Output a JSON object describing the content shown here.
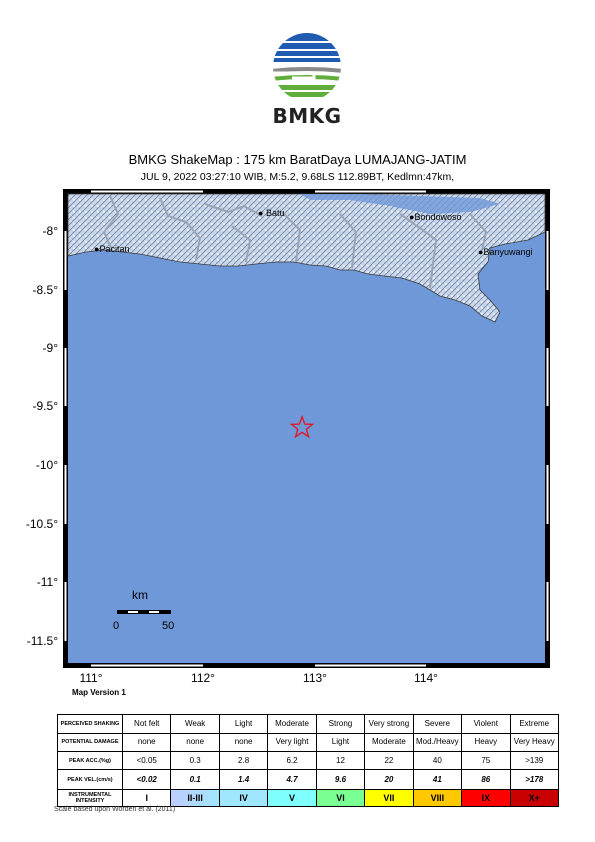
{
  "header": {
    "logo_text": "BMKG",
    "title": "BMKG ShakeMap : 175 km BaratDaya LUMAJANG-JATIM",
    "subtitle": "JUL 9, 2022 03:27:10 WIB, M:5.2, 9.68LS 112.89BT, Kedlmn:47km,"
  },
  "map": {
    "latitude_labels": [
      "-8°",
      "-8.5°",
      "-9°",
      "-9.5°",
      "-10°",
      "-10.5°",
      "-11°",
      "-11.5°"
    ],
    "longitude_labels": [
      "111°",
      "112°",
      "113°",
      "114°"
    ],
    "cities": [
      {
        "name": "Batu",
        "lat": -7.87,
        "lon": 112.52
      },
      {
        "name": "Bondowoso",
        "lat": -7.92,
        "lon": 113.82
      },
      {
        "name": "Pacitan",
        "lat": -8.2,
        "lon": 111.1
      },
      {
        "name": "Banyuwangi",
        "lat": -8.2,
        "lon": 114.37
      }
    ],
    "epicenter": {
      "lat": -9.68,
      "lon": 112.89,
      "icon": "red-star-icon"
    },
    "scale": {
      "unit": "km",
      "min": "0",
      "max": "50"
    },
    "colors": {
      "sea": "#6f98d8",
      "land": "#c8d7ec",
      "epicenter": "#e0192a",
      "boundary": "#9aa4b4"
    }
  },
  "version": "Map Version 1",
  "legend": {
    "rows": [
      {
        "key": "shaking",
        "header": "PERCEIVED SHAKING",
        "cells": [
          "Not felt",
          "Weak",
          "Light",
          "Moderate",
          "Strong",
          "Very strong",
          "Severe",
          "Violent",
          "Extreme"
        ]
      },
      {
        "key": "damage",
        "header": "POTENTIAL DAMAGE",
        "cells": [
          "none",
          "none",
          "none",
          "Very light",
          "Light",
          "Moderate",
          "Mod./Heavy",
          "Heavy",
          "Very Heavy"
        ]
      },
      {
        "key": "acc",
        "header": "PEAK ACC.(%g)",
        "cells": [
          "<0.05",
          "0.3",
          "2.8",
          "6.2",
          "12",
          "22",
          "40",
          "75",
          ">139"
        ]
      },
      {
        "key": "vel",
        "header": "PEAK VEL.(cm/s)",
        "cells": [
          "<0.02",
          "0.1",
          "1.4",
          "4.7",
          "9.6",
          "20",
          "41",
          "86",
          ">178"
        ]
      },
      {
        "key": "int",
        "header": "INSTRUMENTAL INTENSITY",
        "cells": [
          "I",
          "II-III",
          "IV",
          "V",
          "VI",
          "VII",
          "VIII",
          "IX",
          "X+"
        ]
      }
    ],
    "intensity_colors": [
      "#ffffff",
      "#bfccff",
      "#a0e6ff",
      "#80ffff",
      "#7aff93",
      "#ffff00",
      "#ffc800",
      "#ff9100",
      "#ff0000",
      "#c80000"
    ]
  },
  "footnote": "Scale based upon Worden et al. (2011)"
}
